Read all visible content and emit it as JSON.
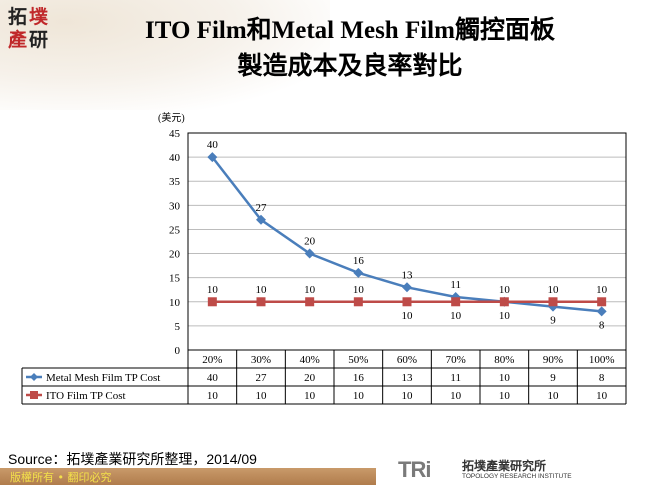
{
  "logo": {
    "chars": [
      "拓",
      "墣",
      "產",
      "研"
    ]
  },
  "title": {
    "line1": "ITO Film和Metal Mesh Film觸控面板",
    "line2": "製造成本及良率對比"
  },
  "chart_data": {
    "type": "line",
    "ylabel": "(美元)",
    "ylim": [
      0,
      45
    ],
    "yticks": [
      0,
      5,
      10,
      15,
      20,
      25,
      30,
      35,
      40,
      45
    ],
    "grid": true,
    "legend": "table-left",
    "categories": [
      "20%",
      "30%",
      "40%",
      "50%",
      "60%",
      "70%",
      "80%",
      "90%",
      "100%"
    ],
    "series": [
      {
        "name": "Metal Mesh Film TP Cost",
        "color": "#4a7ebb",
        "marker": "diamond",
        "values": [
          40,
          27,
          20,
          16,
          13,
          11,
          10,
          9,
          8
        ]
      },
      {
        "name": "ITO Film TP Cost",
        "color": "#be4b48",
        "marker": "square",
        "values": [
          10,
          10,
          10,
          10,
          10,
          10,
          10,
          10,
          10
        ]
      }
    ]
  },
  "source": "Source：拓墣產業研究所整理，2014/09",
  "footer": {
    "copyright": "版權所有 • 翻印必究",
    "brand_mark": "TRi",
    "brand_cn": "拓墣產業研究所",
    "brand_en": "TOPOLOGY RESEARCH INSTITUTE"
  }
}
